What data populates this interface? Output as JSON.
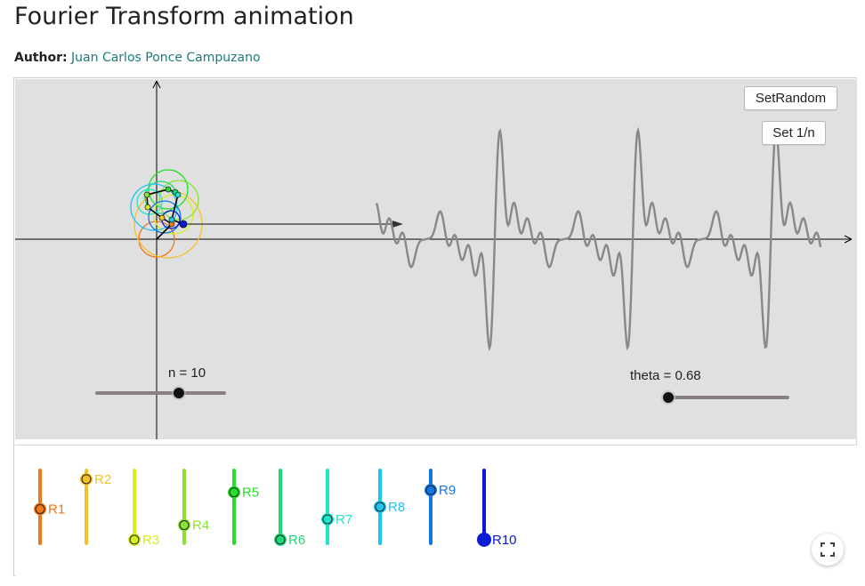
{
  "page": {
    "title": "Fourier Transform animation",
    "author_label": "Author:",
    "author_name": "Juan Carlos Ponce Campuzano"
  },
  "buttons": {
    "set_random": "SetRandom",
    "set_inverse_n": "Set 1/n"
  },
  "sliders": {
    "n": {
      "label": "n = 10",
      "value": 10,
      "min": 1,
      "max": 15
    },
    "theta": {
      "label": "theta = 0.68",
      "value": 0.68
    }
  },
  "radius_sliders": [
    {
      "label": "R1",
      "fraction": 0.47,
      "color": "#f07818"
    },
    {
      "label": "R2",
      "fraction": 0.88,
      "color": "#f2c027"
    },
    {
      "label": "R3",
      "fraction": 0.05,
      "color": "#d6ee1c"
    },
    {
      "label": "R4",
      "fraction": 0.25,
      "color": "#8ee236"
    },
    {
      "label": "R5",
      "fraction": 0.7,
      "color": "#24e02a"
    },
    {
      "label": "R6",
      "fraction": 0.05,
      "color": "#20d878"
    },
    {
      "label": "R7",
      "fraction": 0.33,
      "color": "#1ee6cc"
    },
    {
      "label": "R8",
      "fraction": 0.5,
      "color": "#1cc6ee"
    },
    {
      "label": "R9",
      "fraction": 0.73,
      "color": "#1276e4"
    },
    {
      "label": "R10",
      "fraction": 0.05,
      "color": "#0b18d6"
    }
  ],
  "icons": {
    "fullscreen": "fullscreen-icon"
  },
  "colors": {
    "graphics_bg": "#e0e0e0",
    "wave": "#888888",
    "slider_track": "#8a7f7f",
    "link": "#1e7b7b"
  }
}
